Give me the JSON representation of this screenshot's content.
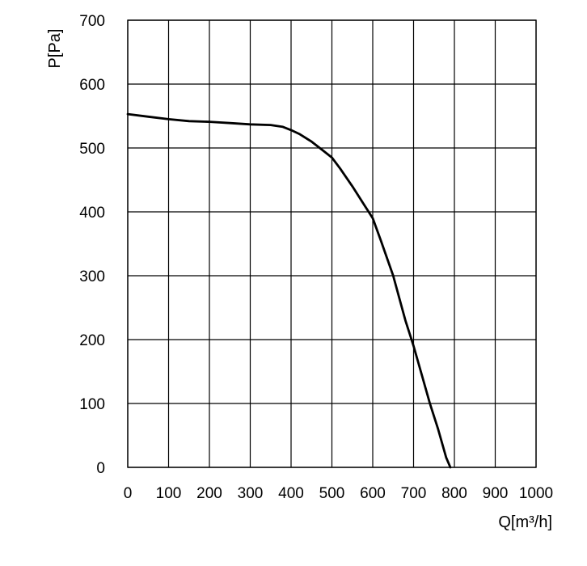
{
  "chart_data": {
    "type": "line",
    "title": "",
    "xlabel": "Q[m³/h]",
    "ylabel": "P[Pa]",
    "xlim": [
      0,
      1000
    ],
    "ylim": [
      0,
      700
    ],
    "x_ticks": [
      0,
      100,
      200,
      300,
      400,
      500,
      600,
      700,
      800,
      900,
      1000
    ],
    "y_ticks": [
      0,
      100,
      200,
      300,
      400,
      500,
      600,
      700
    ],
    "x_tick_labels": [
      "0",
      "100",
      "200",
      "300",
      "400",
      "500",
      "600",
      "700",
      "800",
      "900",
      "1000"
    ],
    "y_tick_labels": [
      "0",
      "100",
      "200",
      "300",
      "400",
      "500",
      "600",
      "700"
    ],
    "grid": true,
    "legend": "none",
    "series": [
      {
        "color": "#000000",
        "x": [
          0,
          50,
          100,
          150,
          200,
          250,
          300,
          350,
          380,
          400,
          420,
          450,
          480,
          500,
          520,
          550,
          580,
          600,
          620,
          650,
          680,
          700,
          720,
          740,
          760,
          780,
          790
        ],
        "y": [
          553,
          549,
          545,
          542,
          541,
          539,
          537,
          536,
          533,
          528,
          522,
          510,
          495,
          485,
          468,
          440,
          410,
          390,
          355,
          300,
          230,
          190,
          145,
          100,
          60,
          15,
          0
        ]
      }
    ]
  }
}
